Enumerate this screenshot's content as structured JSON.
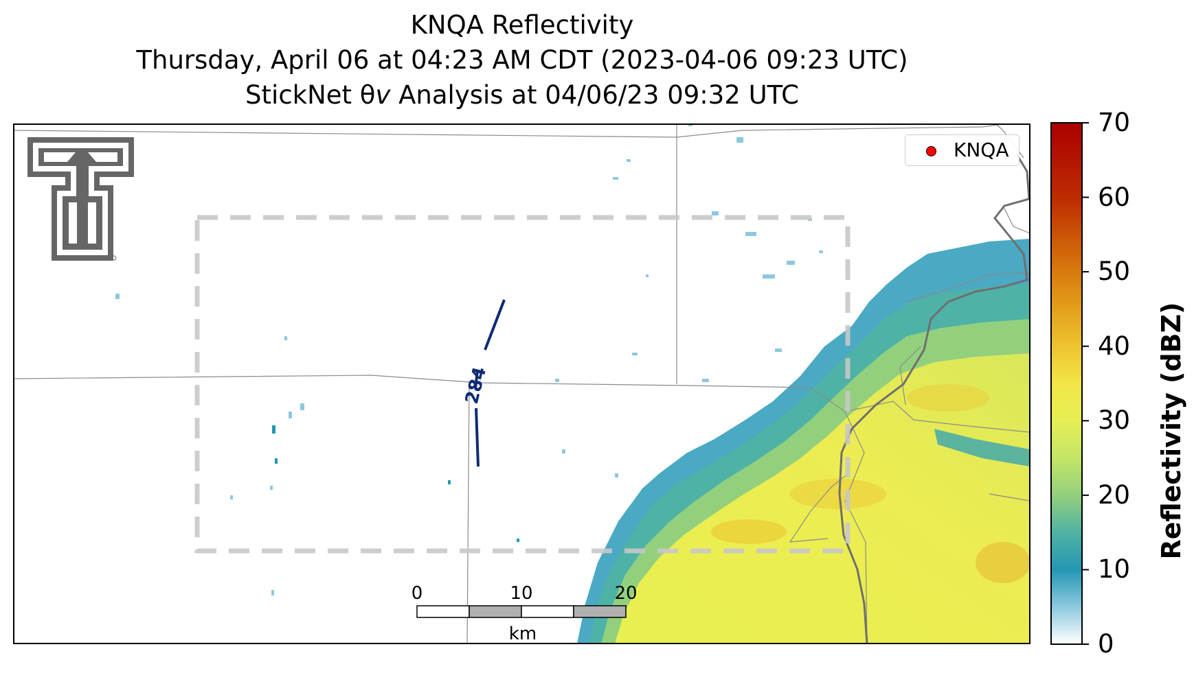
{
  "header": {
    "title": "KNQA Reflectivity",
    "subtitle_1": "Thursday, April 06 at 04:23 AM CDT (2023-04-06 09:23 UTC)",
    "subtitle_2": "StickNet θv Analysis at 04/06/23 09:32 UTC"
  },
  "legend": {
    "label": "KNQA",
    "marker_color": "#ff0000"
  },
  "contour": {
    "label": "284",
    "color": "#0f2b73"
  },
  "scalebar": {
    "ticks": [
      "0",
      "10",
      "20"
    ],
    "unit": "km"
  },
  "colorbar": {
    "label": "Reflectivity (dBZ)",
    "ticks": [
      "0",
      "10",
      "20",
      "30",
      "40",
      "50",
      "60",
      "70"
    ],
    "min": 0,
    "max": 70,
    "stops": [
      {
        "v": 0,
        "color": "#ffffff"
      },
      {
        "v": 5,
        "color": "#8cc9df"
      },
      {
        "v": 10,
        "color": "#2596b4"
      },
      {
        "v": 15,
        "color": "#4fb3a3"
      },
      {
        "v": 20,
        "color": "#93d07d"
      },
      {
        "v": 25,
        "color": "#c4e566"
      },
      {
        "v": 30,
        "color": "#e6ef55"
      },
      {
        "v": 35,
        "color": "#f2e646"
      },
      {
        "v": 40,
        "color": "#eec431"
      },
      {
        "v": 45,
        "color": "#e49f1c"
      },
      {
        "v": 50,
        "color": "#d87a0e"
      },
      {
        "v": 55,
        "color": "#cb5306"
      },
      {
        "v": 60,
        "color": "#bd2b02"
      },
      {
        "v": 70,
        "color": "#ab0000"
      }
    ]
  },
  "logo": {
    "name": "texas-tech-double-t-logo",
    "color": "#666666"
  }
}
